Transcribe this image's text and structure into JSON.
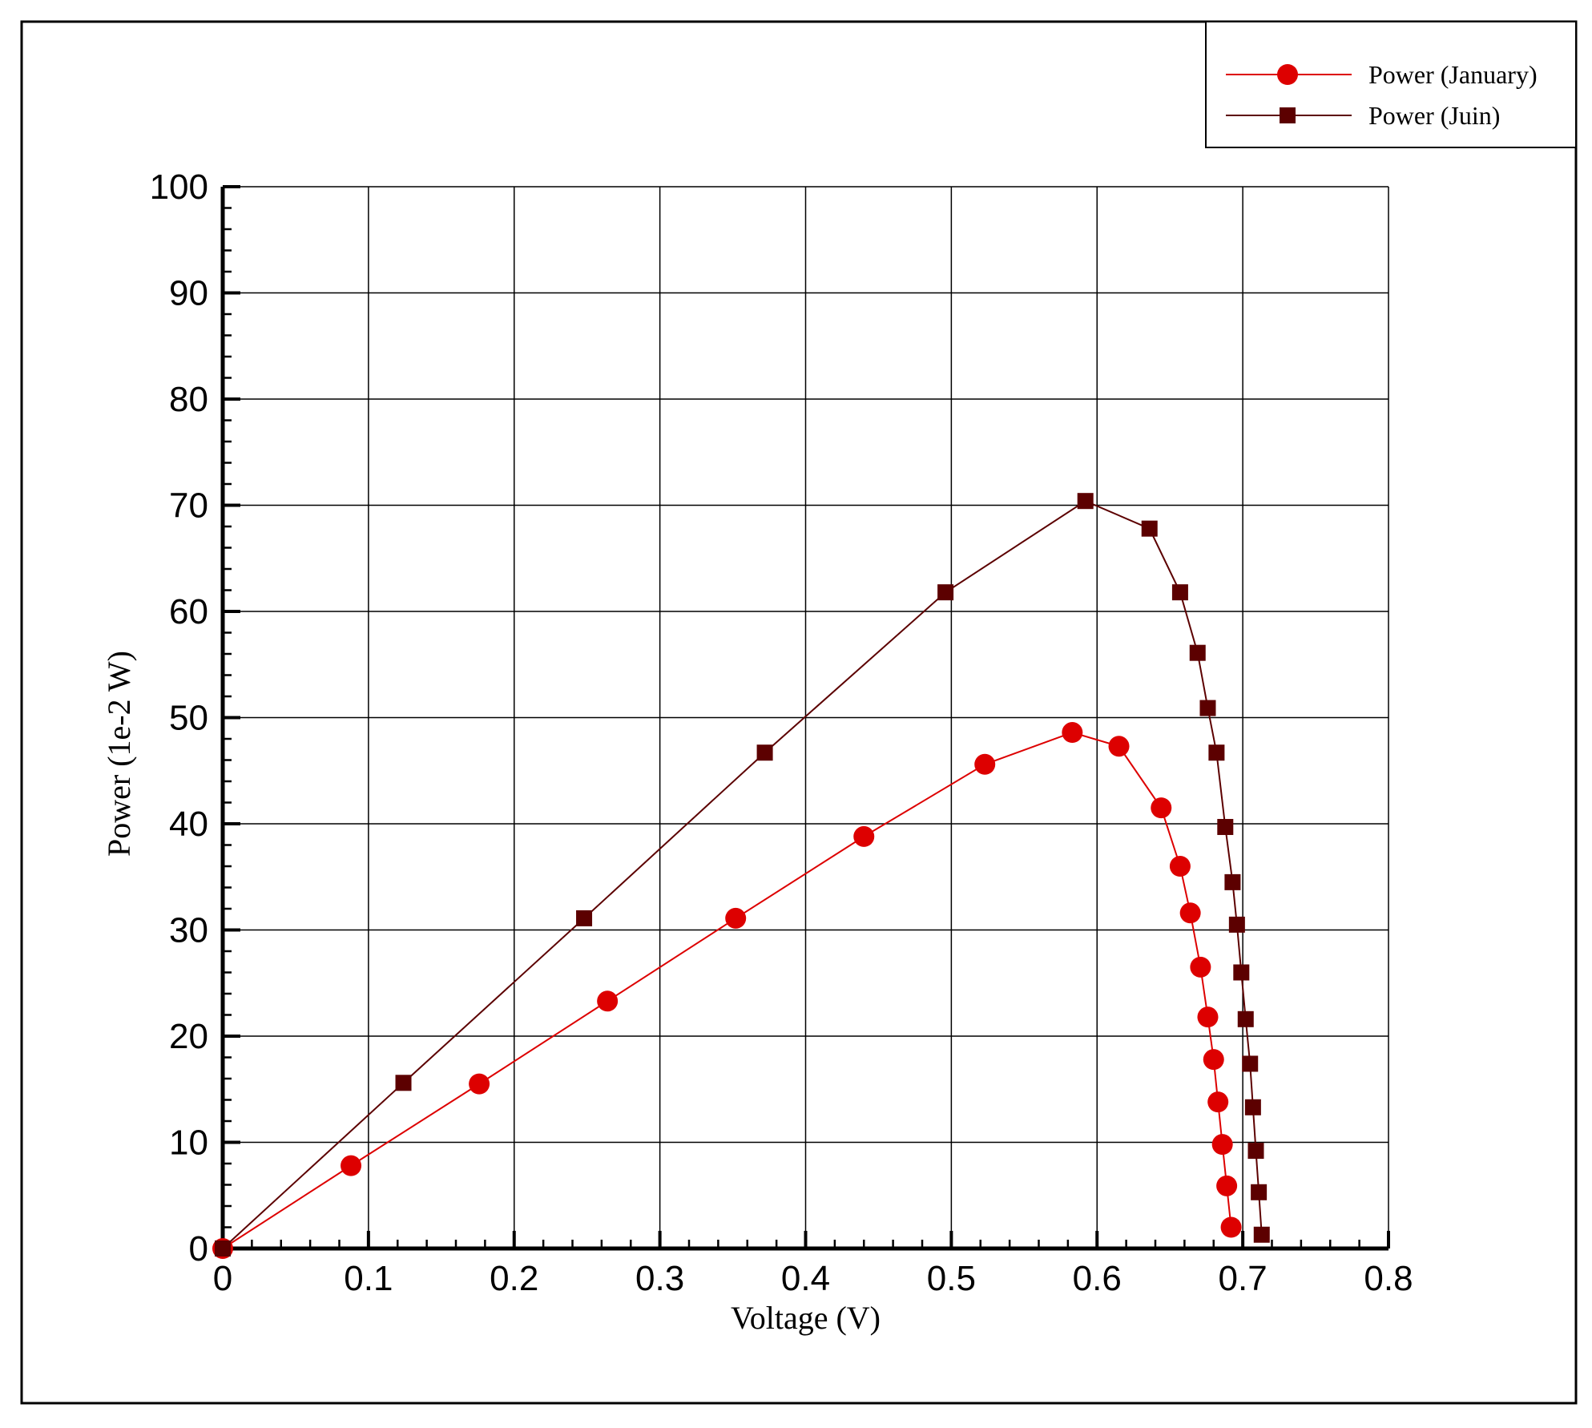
{
  "chart_data": {
    "type": "line",
    "title": "",
    "xlabel": "Voltage (V)",
    "ylabel": "Power (1e-2 W)",
    "xlim": [
      0,
      0.8
    ],
    "ylim": [
      0,
      100
    ],
    "x_ticks": [
      "0",
      "0.1",
      "0.2",
      "0.3",
      "0.4",
      "0.5",
      "0.6",
      "0.7",
      "0.8"
    ],
    "y_ticks": [
      "0",
      "10",
      "20",
      "30",
      "40",
      "50",
      "60",
      "70",
      "80",
      "90",
      "100"
    ],
    "grid": true,
    "legend_position": "top-right",
    "series": [
      {
        "name": "Power (January)",
        "marker": "circle",
        "color": "#dd0000",
        "x": [
          0,
          0.088,
          0.176,
          0.264,
          0.352,
          0.44,
          0.523,
          0.583,
          0.615,
          0.644,
          0.657,
          0.664,
          0.671,
          0.676,
          0.68,
          0.683,
          0.686,
          0.689,
          0.692
        ],
        "y": [
          0,
          7.8,
          15.5,
          23.3,
          31.1,
          38.8,
          45.6,
          48.6,
          47.3,
          41.5,
          36.0,
          31.6,
          26.5,
          21.8,
          17.8,
          13.8,
          9.8,
          5.9,
          2.0
        ]
      },
      {
        "name": "Power (Juin)",
        "marker": "square",
        "color": "#5c0000",
        "x": [
          0,
          0.124,
          0.248,
          0.372,
          0.496,
          0.592,
          0.636,
          0.657,
          0.669,
          0.676,
          0.682,
          0.688,
          0.693,
          0.696,
          0.699,
          0.702,
          0.705,
          0.707,
          0.709,
          0.711,
          0.713
        ],
        "y": [
          0,
          15.6,
          31.1,
          46.7,
          61.8,
          70.4,
          67.8,
          61.8,
          56.1,
          50.9,
          46.7,
          39.7,
          34.5,
          30.5,
          26.0,
          21.6,
          17.4,
          13.3,
          9.2,
          5.3,
          1.3
        ]
      }
    ]
  }
}
